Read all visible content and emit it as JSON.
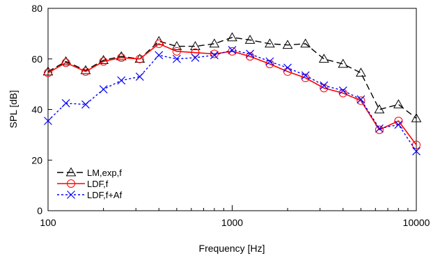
{
  "chart_data": {
    "type": "line",
    "xscale": "log",
    "xlabel": "Frequency   [Hz]",
    "ylabel": "SPL   [dB]",
    "xlim": [
      100,
      10000
    ],
    "ylim": [
      0,
      80
    ],
    "xticks": [
      100,
      1000,
      10000
    ],
    "xtick_labels": [
      "100",
      "1000",
      "10000"
    ],
    "yticks": [
      0,
      20,
      40,
      60,
      80
    ],
    "ytick_labels": [
      "0",
      "20",
      "40",
      "60",
      "80"
    ],
    "grid": false,
    "legend_position": "lower-left",
    "x": [
      100,
      125,
      160,
      200,
      250,
      315,
      400,
      500,
      630,
      800,
      1000,
      1250,
      1600,
      2000,
      2500,
      3150,
      4000,
      5000,
      6300,
      8000,
      10000
    ],
    "series": [
      {
        "name": "LM,exp,f",
        "color": "#000000",
        "dash": "dashed",
        "marker": "triangle",
        "values": [
          55,
          59,
          55.5,
          59.5,
          61,
          60,
          67,
          65,
          65,
          66,
          68.5,
          67.5,
          66,
          65.5,
          66,
          60,
          58,
          54.5,
          40,
          42,
          36.5
        ]
      },
      {
        "name": "LDF,f",
        "color": "#ff0000",
        "dash": "solid",
        "marker": "circle",
        "values": [
          54.5,
          58.5,
          55,
          59,
          60.5,
          60,
          66,
          63,
          62.5,
          62,
          63,
          61,
          58,
          55,
          52.5,
          48.5,
          46.5,
          43.5,
          32,
          35.5,
          26
        ]
      },
      {
        "name": "LDF,f+Af",
        "color": "#0000ff",
        "dash": "dotted",
        "marker": "x",
        "values": [
          35.5,
          42.5,
          42,
          48,
          51.5,
          53,
          61.5,
          60,
          60.5,
          61.5,
          63.5,
          62,
          59,
          56.5,
          53.5,
          49.5,
          47.5,
          44,
          32.5,
          34,
          23.5
        ]
      }
    ]
  }
}
